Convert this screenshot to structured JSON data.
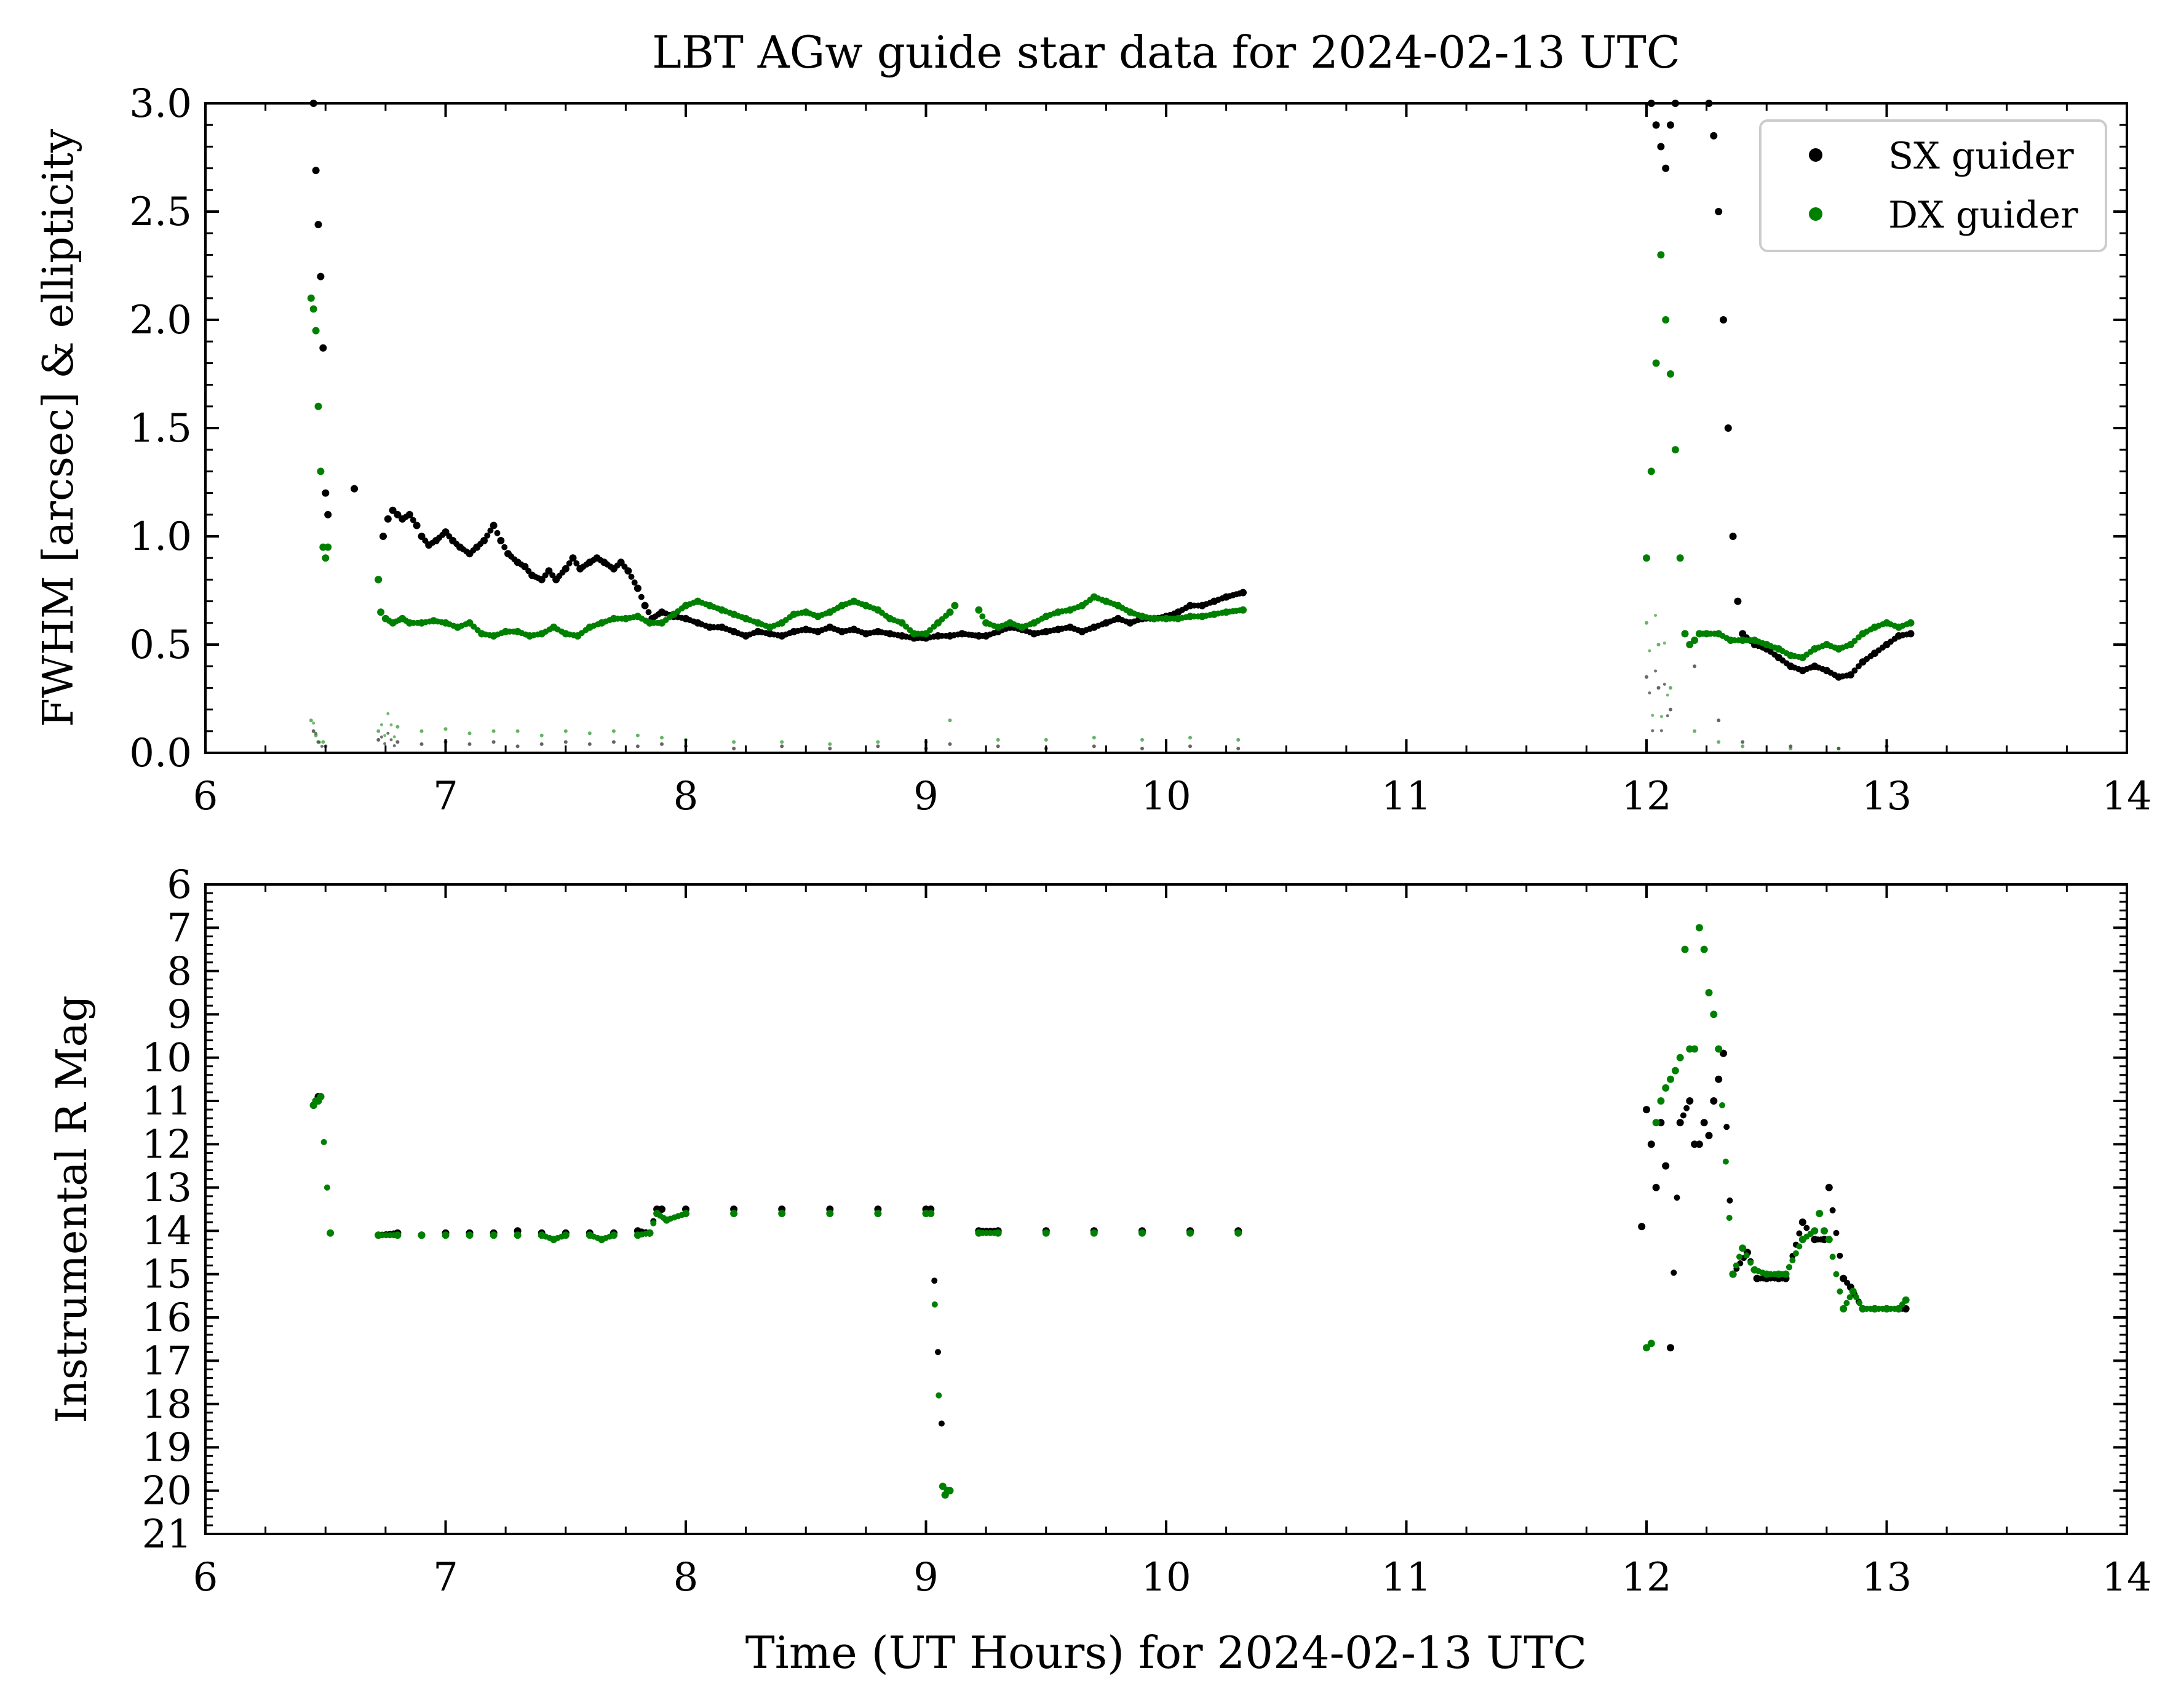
{
  "figure": {
    "title": "LBT AGw guide star data for 2024-02-13 UTC"
  },
  "legend": {
    "placement": "top-right",
    "entries": [
      {
        "label": "SX guider",
        "color": "#000000"
      },
      {
        "label": "DX guider",
        "color": "#008000"
      }
    ]
  },
  "colors": {
    "sx": "#000000",
    "dx": "#008000"
  },
  "chart_data": [
    {
      "type": "scatter",
      "title": "LBT AGw guide star data for 2024-02-13 UTC",
      "xlabel": "",
      "ylabel": "FWHM [arcsec] & ellipticity",
      "xlim": [
        6,
        14
      ],
      "ylim": [
        0,
        3
      ],
      "xticks": [
        6,
        7,
        8,
        9,
        10,
        11,
        12,
        13,
        14
      ],
      "yticks": [
        "0.0",
        "0.5",
        "1.0",
        "1.5",
        "2.0",
        "2.5",
        "3.0"
      ],
      "grid": false,
      "legend": "top-right",
      "series": [
        {
          "name": "SX guider",
          "metric": "FWHM",
          "x": [
            6.45,
            6.46,
            6.47,
            6.48,
            6.49,
            6.5,
            6.51,
            6.62,
            6.72,
            6.74,
            6.76,
            6.78,
            6.8,
            6.82,
            6.85,
            6.88,
            6.9,
            6.93,
            6.96,
            7.0,
            7.03,
            7.06,
            7.1,
            7.13,
            7.16,
            7.2,
            7.23,
            7.26,
            7.3,
            7.33,
            7.36,
            7.4,
            7.43,
            7.46,
            7.5,
            7.53,
            7.56,
            7.6,
            7.63,
            7.66,
            7.7,
            7.73,
            7.76,
            7.8,
            7.83,
            7.86,
            7.9,
            7.95,
            8.0,
            8.05,
            8.1,
            8.15,
            8.2,
            8.25,
            8.3,
            8.35,
            8.4,
            8.45,
            8.5,
            8.55,
            8.6,
            8.65,
            8.7,
            8.75,
            8.8,
            8.85,
            8.9,
            8.95,
            9.0,
            9.05,
            9.1,
            9.15,
            9.22,
            9.25,
            9.3,
            9.35,
            9.4,
            9.45,
            9.5,
            9.55,
            9.6,
            9.65,
            9.7,
            9.75,
            9.8,
            9.85,
            9.9,
            9.95,
            10.0,
            10.05,
            10.1,
            10.15,
            10.2,
            10.25,
            10.32,
            12.02,
            12.04,
            12.06,
            12.08,
            12.1,
            12.12,
            12.14,
            12.16,
            12.18,
            12.2,
            12.22,
            12.24,
            12.26,
            12.28,
            12.3,
            12.32,
            12.34,
            12.36,
            12.38,
            12.4,
            12.45,
            12.5,
            12.55,
            12.6,
            12.65,
            12.7,
            12.75,
            12.8,
            12.85,
            12.9,
            12.95,
            13.0,
            13.05,
            13.1
          ],
          "y": [
            3.0,
            2.69,
            2.44,
            2.2,
            1.87,
            1.2,
            1.1,
            1.22,
            0.8,
            1.0,
            1.08,
            1.12,
            1.1,
            1.08,
            1.1,
            1.05,
            1.0,
            0.96,
            0.98,
            1.02,
            0.98,
            0.95,
            0.92,
            0.95,
            0.98,
            1.05,
            0.98,
            0.92,
            0.88,
            0.86,
            0.82,
            0.8,
            0.84,
            0.8,
            0.85,
            0.9,
            0.85,
            0.88,
            0.9,
            0.88,
            0.85,
            0.88,
            0.84,
            0.76,
            0.68,
            0.62,
            0.65,
            0.63,
            0.62,
            0.6,
            0.58,
            0.58,
            0.56,
            0.54,
            0.56,
            0.55,
            0.54,
            0.56,
            0.57,
            0.56,
            0.58,
            0.56,
            0.57,
            0.55,
            0.56,
            0.55,
            0.54,
            0.53,
            0.53,
            0.54,
            0.54,
            0.55,
            0.54,
            0.54,
            0.56,
            0.58,
            0.57,
            0.55,
            0.56,
            0.57,
            0.58,
            0.56,
            0.58,
            0.6,
            0.62,
            0.6,
            0.62,
            0.62,
            0.63,
            0.65,
            0.68,
            0.68,
            0.7,
            0.72,
            0.74,
            3.0,
            2.9,
            2.8,
            2.7,
            2.9,
            3.0,
            null,
            null,
            null,
            null,
            null,
            null,
            3.0,
            2.85,
            2.5,
            2.0,
            1.5,
            1.0,
            0.7,
            0.55,
            0.5,
            0.48,
            0.44,
            0.4,
            0.38,
            0.4,
            0.38,
            0.35,
            0.36,
            0.42,
            0.46,
            0.5,
            0.54,
            0.55
          ]
        },
        {
          "name": "DX guider",
          "metric": "FWHM",
          "x": [
            6.44,
            6.45,
            6.46,
            6.47,
            6.48,
            6.49,
            6.5,
            6.51,
            6.72,
            6.73,
            6.75,
            6.78,
            6.82,
            6.85,
            6.9,
            6.95,
            7.0,
            7.05,
            7.1,
            7.15,
            7.2,
            7.25,
            7.3,
            7.35,
            7.4,
            7.45,
            7.5,
            7.55,
            7.6,
            7.65,
            7.7,
            7.75,
            7.8,
            7.85,
            7.9,
            7.95,
            8.0,
            8.05,
            8.1,
            8.15,
            8.2,
            8.25,
            8.3,
            8.35,
            8.4,
            8.45,
            8.5,
            8.55,
            8.6,
            8.65,
            8.7,
            8.75,
            8.8,
            8.85,
            8.9,
            8.95,
            9.0,
            9.05,
            9.1,
            9.12,
            9.22,
            9.25,
            9.3,
            9.35,
            9.4,
            9.45,
            9.5,
            9.55,
            9.6,
            9.65,
            9.7,
            9.75,
            9.8,
            9.85,
            9.9,
            9.95,
            10.0,
            10.05,
            10.1,
            10.15,
            10.2,
            10.25,
            10.32,
            12.0,
            12.02,
            12.04,
            12.06,
            12.08,
            12.1,
            12.12,
            12.14,
            12.16,
            12.18,
            12.2,
            12.22,
            12.25,
            12.3,
            12.35,
            12.4,
            12.45,
            12.5,
            12.55,
            12.6,
            12.65,
            12.7,
            12.75,
            12.8,
            12.85,
            12.9,
            12.95,
            13.0,
            13.05,
            13.1
          ],
          "y": [
            2.1,
            2.05,
            1.95,
            1.6,
            1.3,
            0.95,
            0.9,
            0.95,
            0.8,
            0.65,
            0.62,
            0.6,
            0.62,
            0.6,
            0.6,
            0.61,
            0.6,
            0.58,
            0.6,
            0.55,
            0.54,
            0.56,
            0.56,
            0.54,
            0.55,
            0.58,
            0.55,
            0.54,
            0.58,
            0.6,
            0.62,
            0.62,
            0.63,
            0.6,
            0.6,
            0.64,
            0.68,
            0.7,
            0.68,
            0.66,
            0.64,
            0.62,
            0.6,
            0.58,
            0.6,
            0.64,
            0.65,
            0.63,
            0.65,
            0.68,
            0.7,
            0.68,
            0.66,
            0.62,
            0.6,
            0.55,
            0.55,
            0.6,
            0.65,
            0.68,
            0.66,
            0.6,
            0.58,
            0.6,
            0.58,
            0.6,
            0.63,
            0.65,
            0.66,
            0.68,
            0.72,
            0.7,
            0.68,
            0.65,
            0.63,
            0.62,
            0.62,
            0.62,
            0.63,
            0.63,
            0.64,
            0.65,
            0.66,
            0.9,
            1.3,
            1.8,
            2.3,
            2.0,
            1.75,
            1.4,
            0.9,
            0.55,
            0.5,
            0.52,
            0.55,
            0.55,
            0.55,
            0.52,
            0.52,
            0.52,
            0.5,
            0.48,
            0.45,
            0.44,
            0.48,
            0.5,
            0.48,
            0.5,
            0.55,
            0.58,
            0.6,
            0.58,
            0.6
          ]
        },
        {
          "name": "SX guider",
          "metric": "ellipticity",
          "x": [
            6.45,
            6.47,
            6.5,
            6.72,
            6.8,
            6.9,
            7.0,
            7.1,
            7.2,
            7.3,
            7.4,
            7.5,
            7.6,
            7.7,
            7.8,
            7.9,
            8.0,
            8.2,
            8.4,
            8.6,
            8.8,
            9.0,
            9.1,
            9.3,
            9.5,
            9.7,
            9.9,
            10.1,
            10.3,
            12.0,
            12.05,
            12.1,
            12.2,
            12.3,
            12.4,
            12.6,
            12.8,
            13.0
          ],
          "y": [
            0.1,
            0.05,
            0.03,
            0.06,
            0.05,
            0.04,
            0.05,
            0.04,
            0.05,
            0.03,
            0.04,
            0.05,
            0.04,
            0.05,
            0.03,
            0.04,
            0.03,
            0.02,
            0.03,
            0.02,
            0.03,
            0.02,
            0.04,
            0.03,
            0.02,
            0.03,
            0.02,
            0.03,
            0.02,
            0.35,
            0.3,
            0.2,
            0.4,
            0.15,
            0.05,
            0.03,
            0.02,
            0.03
          ]
        },
        {
          "name": "DX guider",
          "metric": "ellipticity",
          "x": [
            6.44,
            6.46,
            6.49,
            6.72,
            6.8,
            6.9,
            7.0,
            7.1,
            7.2,
            7.3,
            7.4,
            7.5,
            7.6,
            7.7,
            7.8,
            7.9,
            8.0,
            8.2,
            8.4,
            8.6,
            8.8,
            9.0,
            9.1,
            9.3,
            9.5,
            9.7,
            9.9,
            10.1,
            10.3,
            12.0,
            12.05,
            12.1,
            12.2,
            12.3,
            12.4,
            12.6,
            12.8,
            13.0
          ],
          "y": [
            0.15,
            0.08,
            0.05,
            0.1,
            0.12,
            0.1,
            0.11,
            0.09,
            0.1,
            0.1,
            0.08,
            0.1,
            0.09,
            0.1,
            0.08,
            0.07,
            0.06,
            0.05,
            0.05,
            0.04,
            0.05,
            0.05,
            0.15,
            0.06,
            0.06,
            0.07,
            0.06,
            0.07,
            0.06,
            0.6,
            0.5,
            0.3,
            0.1,
            0.05,
            0.03,
            0.02,
            0.02,
            0.03
          ]
        }
      ]
    },
    {
      "type": "scatter",
      "xlabel": "Time (UT Hours) for 2024-02-13 UTC",
      "ylabel": "Instrumental R Mag",
      "xlim": [
        6,
        14
      ],
      "ylim": [
        21,
        6
      ],
      "inverted_y": true,
      "xticks": [
        6,
        7,
        8,
        9,
        10,
        11,
        12,
        13,
        14
      ],
      "yticks": [
        6,
        7,
        8,
        9,
        10,
        11,
        12,
        13,
        14,
        15,
        16,
        17,
        18,
        19,
        20,
        21
      ],
      "grid": false,
      "series": [
        {
          "name": "SX guider",
          "x": [
            6.45,
            6.46,
            6.47,
            6.48,
            6.72,
            6.8,
            6.9,
            7.0,
            7.1,
            7.2,
            7.3,
            7.4,
            7.5,
            7.6,
            7.7,
            7.8,
            7.85,
            7.88,
            7.9,
            8.0,
            8.2,
            8.4,
            8.6,
            8.8,
            9.0,
            9.02,
            9.08,
            9.09,
            9.22,
            9.3,
            9.5,
            9.7,
            9.9,
            10.1,
            10.3,
            11.98,
            12.0,
            12.02,
            12.04,
            12.06,
            12.08,
            12.1,
            12.14,
            12.18,
            12.2,
            12.22,
            12.24,
            12.26,
            12.28,
            12.3,
            12.32,
            12.36,
            12.42,
            12.46,
            12.5,
            12.55,
            12.58,
            12.65,
            12.7,
            12.74,
            12.76,
            12.82,
            12.85,
            12.9,
            12.95,
            13.0,
            13.05,
            13.08
          ],
          "y": [
            11.1,
            11.0,
            10.9,
            10.9,
            14.1,
            14.05,
            14.1,
            14.05,
            14.05,
            14.05,
            14.0,
            14.05,
            14.05,
            14.05,
            14.05,
            14.0,
            14.05,
            13.5,
            13.5,
            13.5,
            13.5,
            13.5,
            13.5,
            13.5,
            13.5,
            13.5,
            20.1,
            20.0,
            14.0,
            14.0,
            14.0,
            14.0,
            14.0,
            14.0,
            14.0,
            13.9,
            11.2,
            12.0,
            13.0,
            11.5,
            12.5,
            16.7,
            11.5,
            11.0,
            12.0,
            12.0,
            11.5,
            11.8,
            11.0,
            10.5,
            9.9,
            15.0,
            14.5,
            15.1,
            15.1,
            15.1,
            15.1,
            13.8,
            14.2,
            14.2,
            13.0,
            15.1,
            15.3,
            15.8,
            15.8,
            15.8,
            15.8,
            15.8
          ]
        },
        {
          "name": "DX guider",
          "x": [
            6.45,
            6.46,
            6.47,
            6.48,
            6.52,
            6.72,
            6.8,
            6.9,
            7.0,
            7.1,
            7.2,
            7.3,
            7.4,
            7.45,
            7.5,
            7.6,
            7.65,
            7.7,
            7.8,
            7.85,
            7.88,
            7.92,
            8.0,
            8.2,
            8.4,
            8.6,
            8.8,
            9.0,
            9.02,
            9.07,
            9.08,
            9.09,
            9.1,
            9.22,
            9.3,
            9.5,
            9.7,
            9.9,
            10.1,
            10.3,
            12.0,
            12.02,
            12.04,
            12.06,
            12.08,
            12.1,
            12.12,
            12.14,
            12.16,
            12.18,
            12.2,
            12.22,
            12.24,
            12.26,
            12.28,
            12.3,
            12.36,
            12.4,
            12.45,
            12.5,
            12.55,
            12.58,
            12.65,
            12.7,
            12.72,
            12.74,
            12.76,
            12.82,
            12.86,
            12.9,
            12.95,
            13.0,
            13.05,
            13.08
          ],
          "y": [
            11.1,
            11.0,
            11.0,
            10.9,
            14.05,
            14.1,
            14.1,
            14.1,
            14.1,
            14.1,
            14.1,
            14.1,
            14.1,
            14.2,
            14.1,
            14.1,
            14.2,
            14.1,
            14.1,
            14.05,
            13.6,
            13.75,
            13.6,
            13.6,
            13.6,
            13.6,
            13.6,
            13.6,
            13.6,
            19.9,
            20.1,
            20.0,
            20.0,
            14.05,
            14.05,
            14.05,
            14.05,
            14.05,
            14.05,
            14.05,
            16.7,
            16.6,
            11.5,
            11.0,
            10.7,
            10.5,
            10.3,
            10.0,
            7.5,
            9.8,
            9.8,
            7.0,
            7.5,
            8.5,
            9.0,
            9.8,
            15.0,
            14.4,
            14.9,
            15.0,
            15.0,
            15.0,
            14.2,
            14.0,
            13.6,
            14.0,
            14.2,
            15.8,
            15.4,
            15.8,
            15.8,
            15.8,
            15.8,
            15.6
          ]
        }
      ]
    }
  ]
}
